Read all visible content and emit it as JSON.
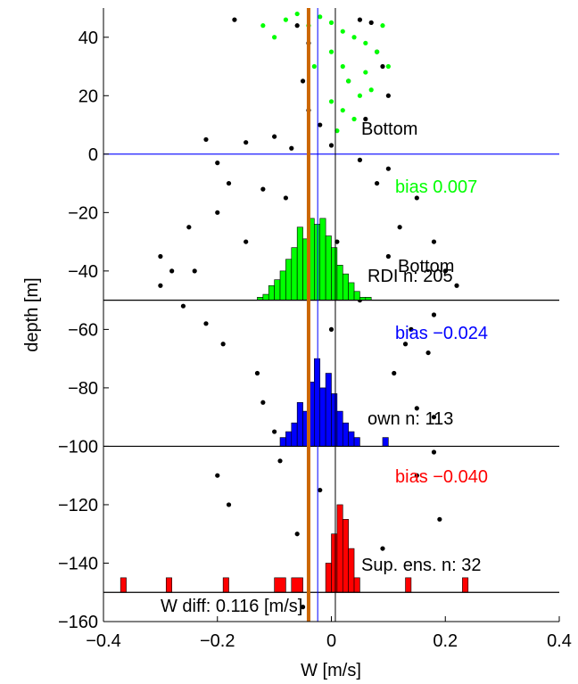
{
  "chart_data": {
    "type": "scatter",
    "xlabel": "W [m/s]",
    "ylabel": "depth [m]",
    "xlim": [
      -0.4,
      0.4
    ],
    "ylim": [
      -160,
      50
    ],
    "xticks": [
      {
        "value": -0.4,
        "label": "−0.4"
      },
      {
        "value": -0.2,
        "label": "−0.2"
      },
      0,
      0.2,
      0.4
    ],
    "yticks": [
      {
        "value": -160,
        "label": "−160"
      },
      {
        "value": -140,
        "label": "−140"
      },
      {
        "value": -120,
        "label": "−120"
      },
      {
        "value": -100,
        "label": "−100"
      },
      {
        "value": -80,
        "label": "−80"
      },
      {
        "value": -60,
        "label": "−60"
      },
      {
        "value": -40,
        "label": "−40"
      },
      {
        "value": -20,
        "label": "−20"
      },
      0,
      20,
      40
    ],
    "series": [
      {
        "color": "#000000",
        "x": [
          -0.17,
          -0.06,
          0.05,
          0.07,
          -0.04,
          0.08,
          0.09,
          0.1,
          -0.05,
          -0.04,
          0.06,
          -0.22,
          -0.15,
          -0.1,
          -0.07,
          0.0,
          0.05,
          0.1,
          -0.2,
          -0.18,
          -0.12,
          0.08,
          0.15,
          -0.2,
          -0.25,
          0.12,
          0.18,
          -0.3,
          -0.28,
          0.2,
          0.22,
          -0.3,
          -0.26,
          0.18,
          -0.22,
          0.14,
          0.17,
          -0.19,
          -0.13,
          0.11,
          -0.12,
          0.18,
          0.18,
          -0.09,
          0.15,
          -0.2,
          0.19,
          -0.18,
          -0.06,
          0.09,
          -0.02,
          0.02,
          -0.05,
          0.15,
          -0.24,
          0.05,
          -0.08,
          -0.02,
          0.03,
          0.01,
          -0.15,
          0.1,
          0.0,
          0.13,
          -0.1
        ],
        "y": [
          46,
          44,
          46,
          45,
          38,
          35,
          30,
          20,
          25,
          15,
          12,
          5,
          4,
          6,
          2,
          3,
          -2,
          -5,
          -3,
          -10,
          -12,
          -10,
          -15,
          -20,
          -25,
          -25,
          -30,
          -35,
          -40,
          -40,
          -45,
          -45,
          -52,
          -55,
          -58,
          -60,
          -68,
          -65,
          -75,
          -75,
          -85,
          -90,
          -102,
          -105,
          -110,
          -110,
          -125,
          -120,
          -130,
          -135,
          -115,
          -145,
          -155,
          -87,
          -40,
          -50,
          -15,
          10,
          25,
          -30,
          -30,
          -35,
          -60,
          -65,
          -95
        ]
      },
      {
        "color": "#00ff00",
        "x": [
          -0.06,
          -0.04,
          -0.02,
          0.0,
          0.02,
          0.04,
          0.06,
          0.08,
          0.1,
          -0.12,
          -0.1,
          0.0,
          0.02,
          0.03,
          0.05,
          0.07,
          0.0,
          0.02,
          0.04,
          0.01,
          0.06,
          -0.03,
          0.09,
          -0.08
        ],
        "y": [
          48,
          44,
          47,
          45,
          42,
          40,
          38,
          35,
          30,
          44,
          40,
          35,
          30,
          25,
          20,
          22,
          18,
          15,
          12,
          8,
          28,
          30,
          44,
          46
        ]
      }
    ],
    "histograms": [
      {
        "color": "#00ff00",
        "base": -50,
        "bins": [
          -0.13,
          -0.12,
          -0.11,
          -0.1,
          -0.09,
          -0.08,
          -0.07,
          -0.06,
          -0.05,
          -0.04,
          -0.03,
          -0.02,
          -0.01,
          0.0,
          0.01,
          0.02,
          0.03,
          0.04,
          0.05,
          0.06,
          0.07
        ],
        "counts": [
          1,
          2,
          5,
          7,
          10,
          14,
          18,
          25,
          21,
          28,
          26,
          28,
          22,
          18,
          12,
          9,
          6,
          3,
          1,
          1
        ]
      },
      {
        "color": "#0000ff",
        "base": -100,
        "bins": [
          -0.09,
          -0.08,
          -0.07,
          -0.06,
          -0.05,
          -0.04,
          -0.03,
          -0.02,
          -0.01,
          0.0,
          0.01,
          0.02,
          0.03,
          0.04,
          0.05,
          0.06,
          0.07,
          0.08,
          0.09,
          0.1,
          0.11
        ],
        "counts": [
          3,
          5,
          8,
          15,
          12,
          22,
          30,
          20,
          25,
          18,
          12,
          8,
          5,
          3,
          0,
          0,
          0,
          0,
          3,
          0,
          0
        ]
      },
      {
        "color": "#ff0000",
        "base": -150,
        "bins": [
          -0.37,
          -0.36,
          -0.29,
          -0.28,
          -0.19,
          -0.18,
          -0.1,
          -0.08,
          -0.07,
          -0.05,
          -0.01,
          0.0,
          0.01,
          0.02,
          0.03,
          0.04,
          0.05,
          0.13,
          0.14,
          0.23,
          0.24
        ],
        "counts": [
          5,
          0,
          5,
          0,
          5,
          0,
          5,
          0,
          5,
          0,
          10,
          20,
          30,
          25,
          15,
          5,
          0,
          5,
          0,
          5
        ]
      }
    ],
    "hlines": [
      {
        "value": 0,
        "color": "#0000ff"
      },
      {
        "value": -50,
        "color": "#000000"
      },
      {
        "value": -100,
        "color": "#000000"
      },
      {
        "value": -150,
        "color": "#000000"
      }
    ],
    "vlines": [
      {
        "value": -0.04,
        "color": "#cc6600"
      },
      {
        "value": -0.024,
        "color": "#0000ff"
      },
      {
        "value": 0.007,
        "color": "#000000"
      }
    ],
    "annotations": [
      {
        "text": "Bottom",
        "color": "#000000"
      },
      {
        "text": "bias  0.007",
        "color": "#00ff00"
      },
      {
        "text": "Bottom",
        "color": "#000000"
      },
      {
        "text": "RDI n: 205",
        "color": "#000000"
      },
      {
        "text": "bias −0.024",
        "color": "#0000ff"
      },
      {
        "text": "own n: 113",
        "color": "#000000"
      },
      {
        "text": "bias −0.040",
        "color": "#ff0000"
      },
      {
        "text": "Sup. ens. n: 32",
        "color": "#000000"
      },
      {
        "text": "W diff:  0.116 [m/s]",
        "color": "#000000"
      }
    ]
  }
}
